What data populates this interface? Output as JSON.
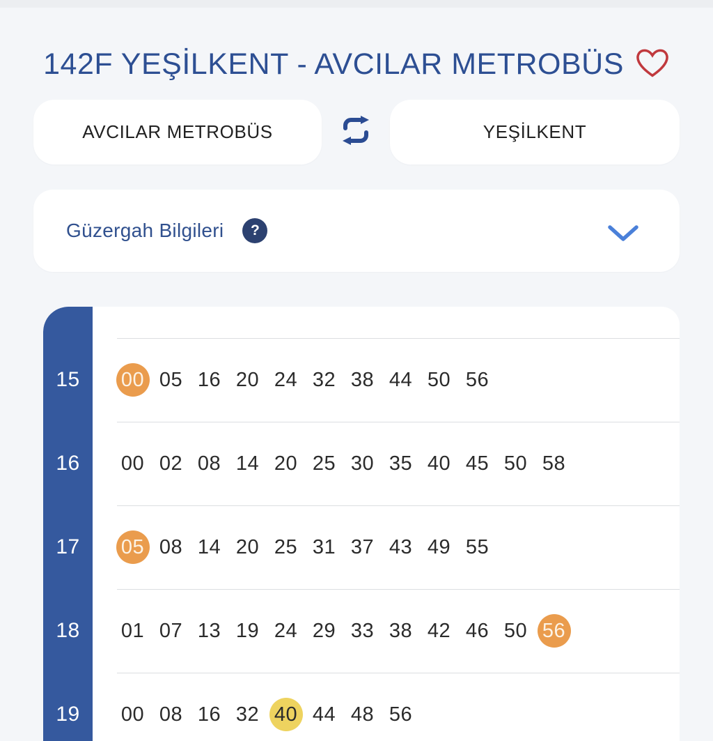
{
  "header": {
    "title": "142F YEŞİLKENT - AVCILAR METROBÜS",
    "favorite_icon": "heart-outline"
  },
  "direction_toggle": {
    "origin": "AVCILAR METROBÜS",
    "destination": "YEŞİLKENT",
    "swap_icon": "swap-arrows"
  },
  "route_info": {
    "label": "Güzergah Bilgileri",
    "help_glyph": "?",
    "chevron_icon": "chevron-down"
  },
  "timetable": {
    "rows": [
      {
        "hour": "15",
        "minutes": [
          {
            "t": "00",
            "hl": "orange"
          },
          {
            "t": "05"
          },
          {
            "t": "16"
          },
          {
            "t": "20"
          },
          {
            "t": "24"
          },
          {
            "t": "32"
          },
          {
            "t": "38"
          },
          {
            "t": "44"
          },
          {
            "t": "50"
          },
          {
            "t": "56"
          }
        ]
      },
      {
        "hour": "16",
        "minutes": [
          {
            "t": "00"
          },
          {
            "t": "02"
          },
          {
            "t": "08"
          },
          {
            "t": "14"
          },
          {
            "t": "20"
          },
          {
            "t": "25"
          },
          {
            "t": "30"
          },
          {
            "t": "35"
          },
          {
            "t": "40"
          },
          {
            "t": "45"
          },
          {
            "t": "50"
          },
          {
            "t": "58"
          }
        ]
      },
      {
        "hour": "17",
        "minutes": [
          {
            "t": "05",
            "hl": "orange"
          },
          {
            "t": "08"
          },
          {
            "t": "14"
          },
          {
            "t": "20"
          },
          {
            "t": "25"
          },
          {
            "t": "31"
          },
          {
            "t": "37"
          },
          {
            "t": "43"
          },
          {
            "t": "49"
          },
          {
            "t": "55"
          }
        ]
      },
      {
        "hour": "18",
        "minutes": [
          {
            "t": "01"
          },
          {
            "t": "07"
          },
          {
            "t": "13"
          },
          {
            "t": "19"
          },
          {
            "t": "24"
          },
          {
            "t": "29"
          },
          {
            "t": "33"
          },
          {
            "t": "38"
          },
          {
            "t": "42"
          },
          {
            "t": "46"
          },
          {
            "t": "50"
          },
          {
            "t": "56",
            "hl": "orange"
          }
        ]
      },
      {
        "hour": "19",
        "minutes": [
          {
            "t": "00"
          },
          {
            "t": "08"
          },
          {
            "t": "16"
          },
          {
            "t": "32"
          },
          {
            "t": "40",
            "hl": "yellow"
          },
          {
            "t": "44"
          },
          {
            "t": "48"
          },
          {
            "t": "56"
          }
        ]
      }
    ]
  },
  "colors": {
    "background": "#f4f6f9",
    "title_blue": "#2d4f93",
    "sidebar_blue": "#35599e",
    "swap_icon_blue": "#2b4c93",
    "chevron_blue": "#4a80d9",
    "heart_red": "#c0393e",
    "highlight_orange": "#ea9c4d",
    "highlight_yellow": "#eed35f",
    "divider_gray": "#dcdee1"
  }
}
